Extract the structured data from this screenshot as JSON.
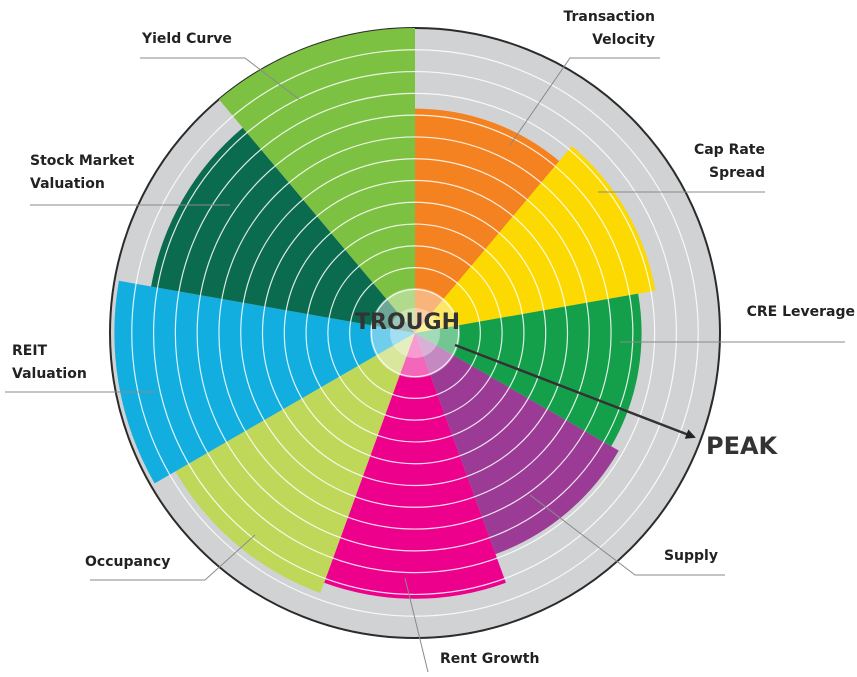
{
  "chart_data": {
    "type": "polar",
    "categories": [
      "Transaction\nVelocity",
      "Cap Rate\nSpread",
      "CRE Leverage",
      "Supply",
      "Rent Growth",
      "Occupancy",
      "REIT\nValuation",
      "Stock Market\nValuation",
      "Yield Curve"
    ],
    "values": [
      10.3,
      11.2,
      10.4,
      10.8,
      12.2,
      12.7,
      13.8,
      12.3,
      14
    ],
    "colors": [
      "#f58220",
      "#fcd900",
      "#14a04a",
      "#9b3b96",
      "#ec008c",
      "#bfd85a",
      "#12aee0",
      "#0b6b4e",
      "#7dc142"
    ],
    "rlim": [
      0,
      14
    ],
    "rticks": [
      2,
      3,
      4,
      5,
      6,
      7,
      8,
      9,
      10,
      11,
      12,
      13
    ],
    "grid": true,
    "annotations": {
      "center": "TROUGH",
      "end": "PEAK"
    }
  }
}
